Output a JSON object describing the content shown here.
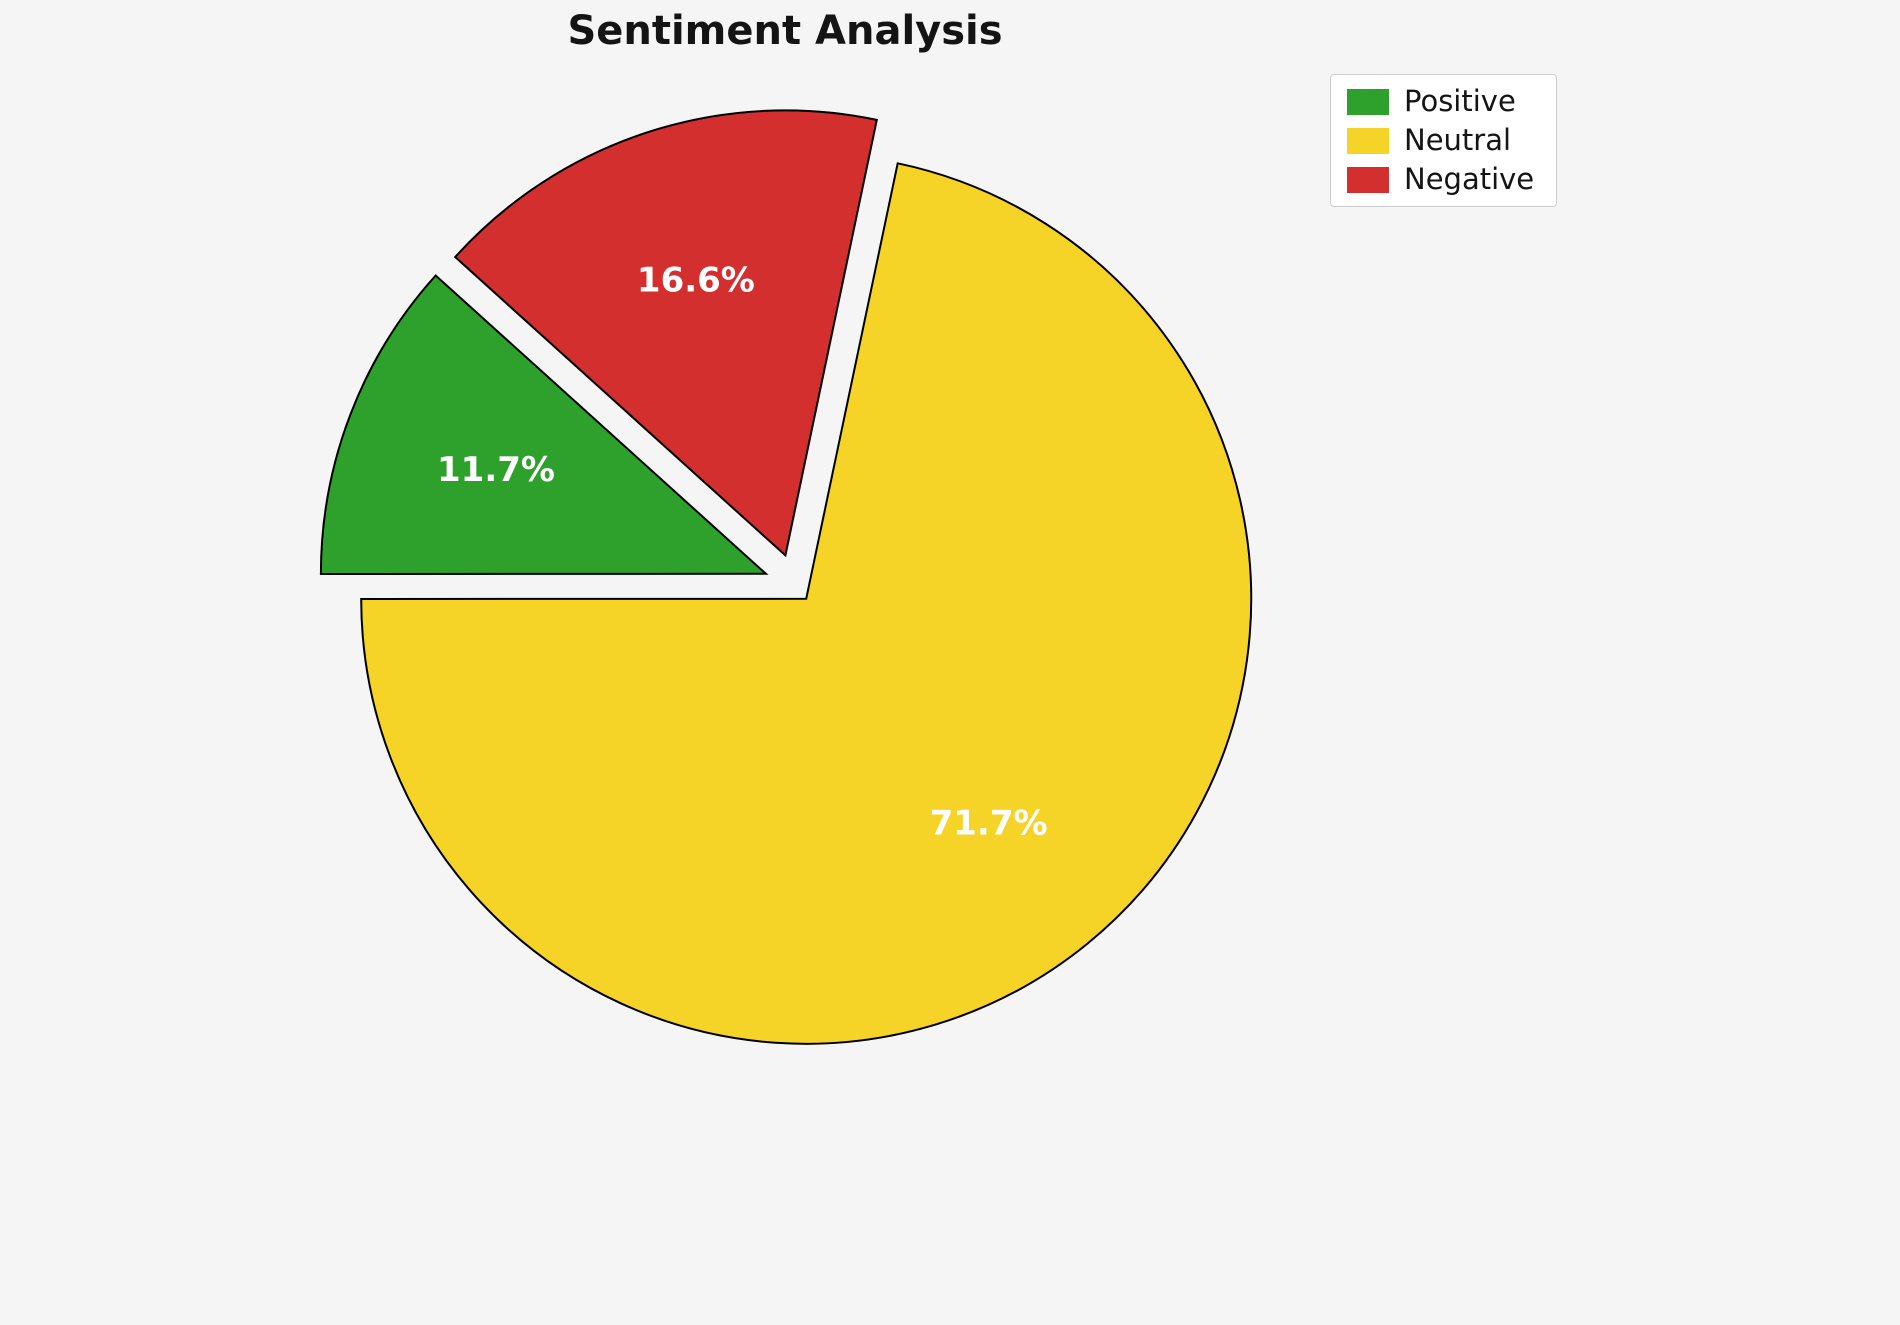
{
  "chart_data": {
    "type": "pie",
    "title": "Sentiment Analysis",
    "labels": [
      "Positive",
      "Neutral",
      "Negative"
    ],
    "values": [
      11.7,
      71.7,
      16.6
    ],
    "value_labels": [
      "11.7%",
      "71.7%",
      "16.6%"
    ],
    "colors": [
      "#2ea12d",
      "#f5d327",
      "#d32f2f"
    ],
    "edge_color": "#000000",
    "value_label_color": "#ffffff",
    "explode": [
      0.07,
      0.04,
      0.07
    ],
    "start_angle": 137.9,
    "counterclockwise": true,
    "legend_position": "upper right",
    "legend": [
      "Positive",
      "Neutral",
      "Negative"
    ],
    "background": "#f5f5f5"
  }
}
